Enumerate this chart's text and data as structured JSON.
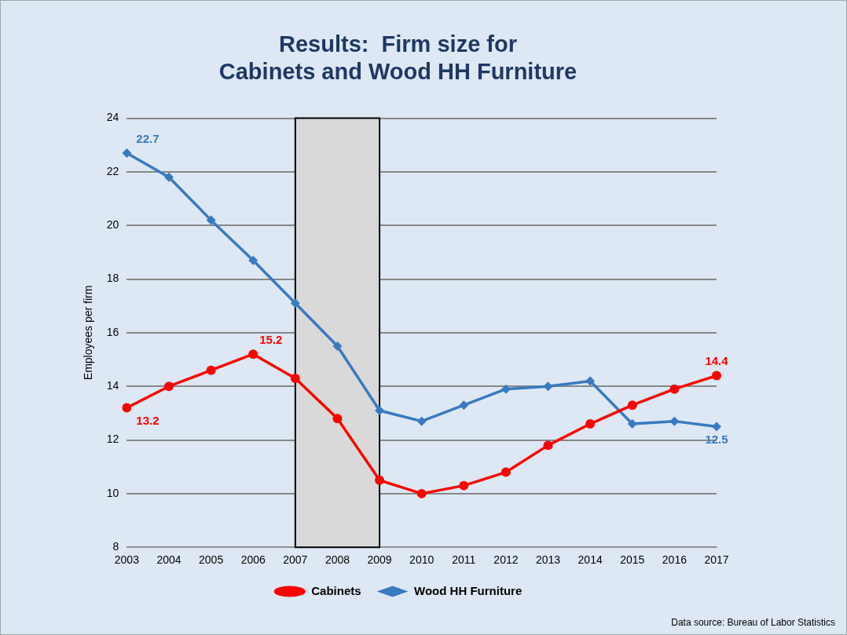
{
  "chart_data": {
    "type": "line",
    "title": "Results:  Firm size for\nCabinets and Wood HH Furniture",
    "ylabel": "Employees per firm",
    "categories": [
      "2003",
      "2004",
      "2005",
      "2006",
      "2007",
      "2008",
      "2009",
      "2010",
      "2011",
      "2012",
      "2013",
      "2014",
      "2015",
      "2016",
      "2017"
    ],
    "series": [
      {
        "name": "Cabinets",
        "color": "#ff0000",
        "marker": "circle",
        "values": [
          13.2,
          14.0,
          14.6,
          15.2,
          14.3,
          12.8,
          10.5,
          10.0,
          10.3,
          10.8,
          11.8,
          12.6,
          13.3,
          13.9,
          14.4
        ],
        "value_labels": [
          "13.2",
          null,
          null,
          "15.2",
          null,
          null,
          null,
          null,
          null,
          null,
          null,
          null,
          null,
          null,
          "14.4"
        ]
      },
      {
        "name": "Wood HH Furniture",
        "color": "#3a7abf",
        "marker": "diamond",
        "values": [
          22.7,
          21.8,
          20.2,
          18.7,
          17.1,
          15.5,
          13.1,
          12.7,
          13.3,
          13.9,
          14.0,
          14.2,
          12.6,
          12.7,
          12.5
        ],
        "value_labels": [
          "22.7",
          null,
          null,
          null,
          null,
          null,
          null,
          null,
          null,
          null,
          null,
          null,
          null,
          null,
          "12.5"
        ]
      }
    ],
    "ylim": [
      8,
      24
    ],
    "yticks": [
      8,
      10,
      12,
      14,
      16,
      18,
      20,
      22,
      24
    ],
    "grid": "y",
    "legend": "bottom",
    "bands": [
      {
        "axis": "x",
        "from": "2007",
        "to": "2009",
        "color": "#d9d9d9"
      }
    ],
    "annotations": [
      "Data source:  Bureau of Labor Statistics"
    ]
  }
}
